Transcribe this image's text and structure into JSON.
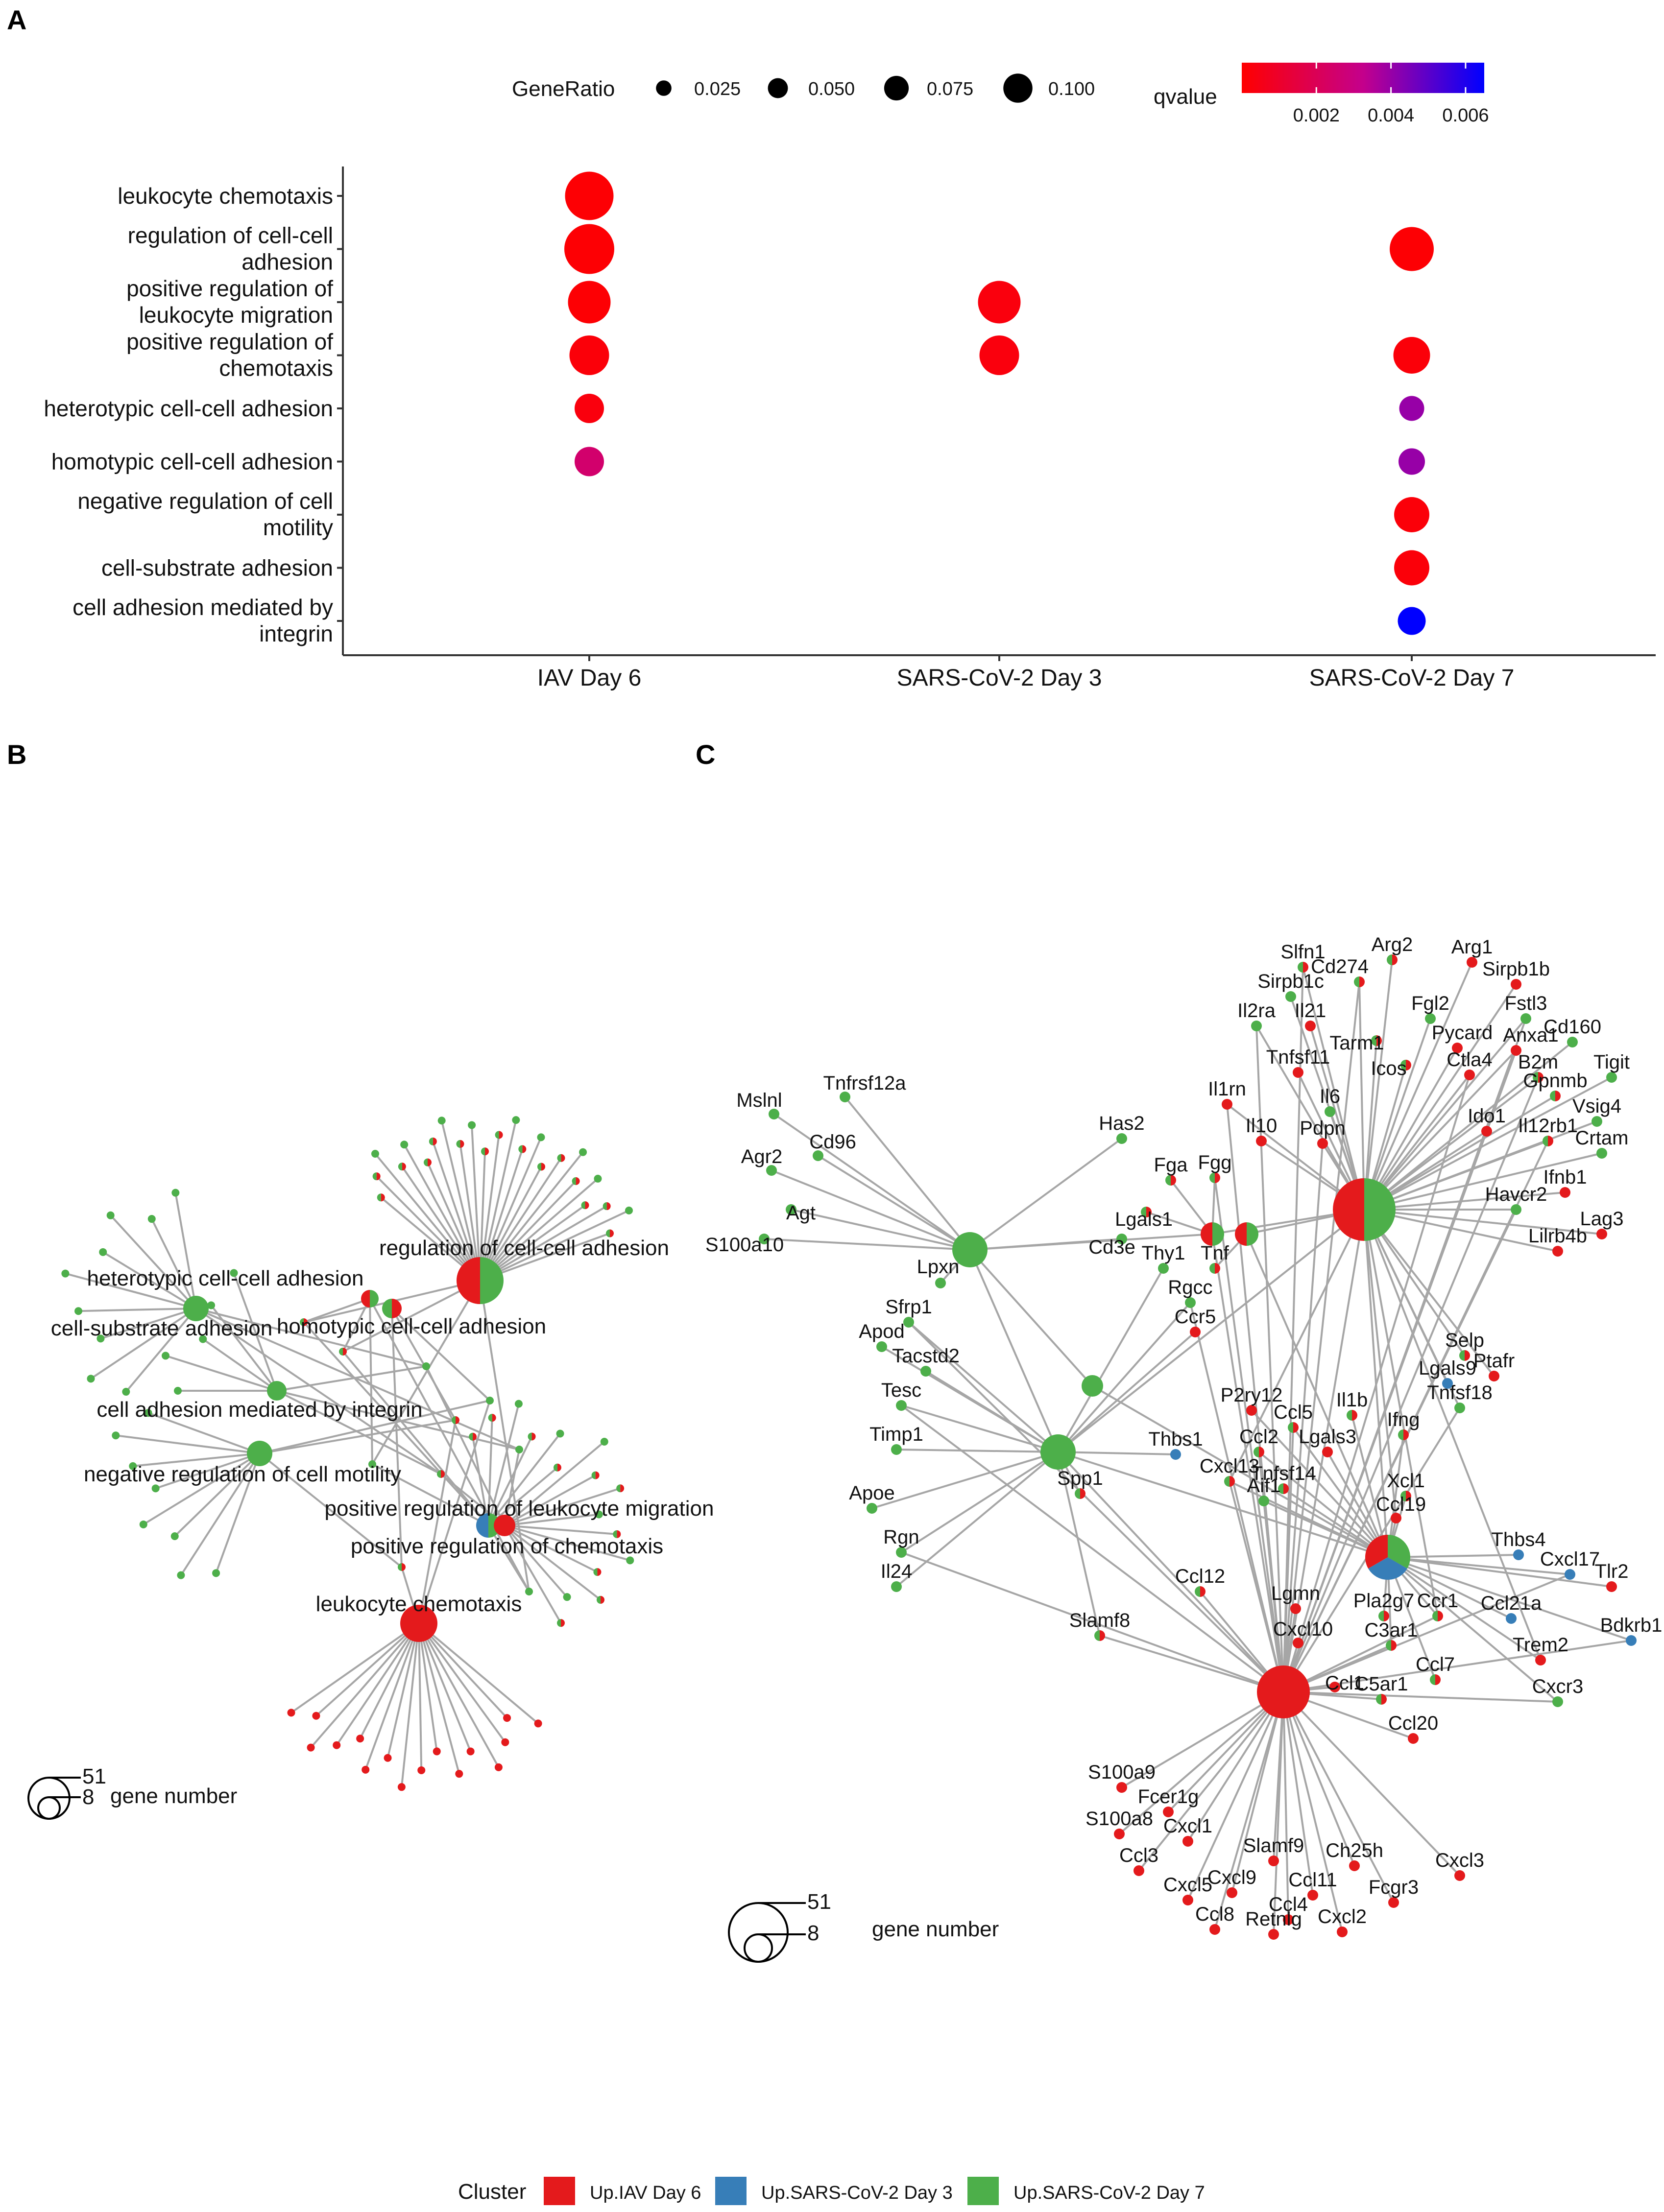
{
  "panels": {
    "a": "A",
    "b": "B",
    "c": "C"
  },
  "colors": {
    "iav": "#E41A1C",
    "sars3": "#377EB8",
    "sars7": "#4DAF4A",
    "edge": "#a6a6a6"
  },
  "chart_data": [
    {
      "type": "scatter",
      "subtype": "dotplot",
      "title": "",
      "categories_x": [
        "IAV Day 6",
        "SARS-CoV-2 Day 3",
        "SARS-CoV-2 Day 7"
      ],
      "categories_y": [
        "leukocyte chemotaxis",
        "regulation of cell-cell adhesion",
        "positive regulation of leukocyte migration",
        "positive regulation of chemotaxis",
        "heterotypic cell-cell adhesion",
        "homotypic cell-cell adhesion",
        "negative regulation of cell motility",
        "cell-substrate adhesion",
        "cell adhesion mediated by integrin"
      ],
      "categories_y_display": [
        [
          "leukocyte chemotaxis"
        ],
        [
          "regulation of cell-cell",
          "adhesion"
        ],
        [
          "positive regulation of",
          "leukocyte migration"
        ],
        [
          "positive regulation of",
          "chemotaxis"
        ],
        [
          "heterotypic cell-cell adhesion"
        ],
        [
          "homotypic cell-cell adhesion"
        ],
        [
          "negative regulation of cell",
          "motility"
        ],
        [
          "cell-substrate adhesion"
        ],
        [
          "cell adhesion mediated by",
          "integrin"
        ]
      ],
      "points": [
        {
          "x": "IAV Day 6",
          "y": "leukocyte chemotaxis",
          "gene_ratio": 0.105,
          "qvalue": 0.0001
        },
        {
          "x": "IAV Day 6",
          "y": "regulation of cell-cell adhesion",
          "gene_ratio": 0.11,
          "qvalue": 0.0001
        },
        {
          "x": "IAV Day 6",
          "y": "positive regulation of leukocyte migration",
          "gene_ratio": 0.085,
          "qvalue": 0.0001
        },
        {
          "x": "IAV Day 6",
          "y": "positive regulation of chemotaxis",
          "gene_ratio": 0.075,
          "qvalue": 0.0002
        },
        {
          "x": "IAV Day 6",
          "y": "heterotypic cell-cell adhesion",
          "gene_ratio": 0.04,
          "qvalue": 0.0003
        },
        {
          "x": "IAV Day 6",
          "y": "homotypic cell-cell adhesion",
          "gene_ratio": 0.04,
          "qvalue": 0.0025
        },
        {
          "x": "SARS-CoV-2 Day 3",
          "y": "positive regulation of leukocyte migration",
          "gene_ratio": 0.085,
          "qvalue": 0.0003
        },
        {
          "x": "SARS-CoV-2 Day 3",
          "y": "positive regulation of chemotaxis",
          "gene_ratio": 0.075,
          "qvalue": 0.0003
        },
        {
          "x": "SARS-CoV-2 Day 7",
          "y": "regulation of cell-cell adhesion",
          "gene_ratio": 0.09,
          "qvalue": 0.0001
        },
        {
          "x": "SARS-CoV-2 Day 7",
          "y": "positive regulation of chemotaxis",
          "gene_ratio": 0.065,
          "qvalue": 0.0002
        },
        {
          "x": "SARS-CoV-2 Day 7",
          "y": "heterotypic cell-cell adhesion",
          "gene_ratio": 0.025,
          "qvalue": 0.004
        },
        {
          "x": "SARS-CoV-2 Day 7",
          "y": "homotypic cell-cell adhesion",
          "gene_ratio": 0.03,
          "qvalue": 0.004
        },
        {
          "x": "SARS-CoV-2 Day 7",
          "y": "negative regulation of cell motility",
          "gene_ratio": 0.06,
          "qvalue": 0.0002
        },
        {
          "x": "SARS-CoV-2 Day 7",
          "y": "cell-substrate adhesion",
          "gene_ratio": 0.06,
          "qvalue": 0.0002
        },
        {
          "x": "SARS-CoV-2 Day 7",
          "y": "cell adhesion mediated by integrin",
          "gene_ratio": 0.035,
          "qvalue": 0.0065
        }
      ],
      "size_legend": {
        "title": "GeneRatio",
        "values": [
          0.025,
          0.05,
          0.075,
          0.1
        ],
        "labels": [
          "0.025",
          "0.050",
          "0.075",
          "0.100"
        ]
      },
      "color_legend": {
        "title": "qvalue",
        "range": [
          0,
          0.0065
        ],
        "ticks": [
          0.002,
          0.004,
          0.006
        ],
        "labels": [
          "0.002",
          "0.004",
          "0.006"
        ],
        "low_color": "#FF0000",
        "high_color": "#0000FF"
      }
    },
    {
      "type": "network",
      "panel": "B",
      "description_nodes": [
        {
          "label": "regulation of cell-cell adhesion",
          "genes": 45,
          "clusters": [
            "Up.SARS-CoV-2 Day 7",
            "Up.IAV Day 6"
          ]
        },
        {
          "label": "heterotypic cell-cell adhesion",
          "genes": 12,
          "clusters": [
            "Up.SARS-CoV-2 Day 7"
          ]
        },
        {
          "label": "homotypic cell-cell adhesion",
          "genes": 10,
          "clusters": [
            "Up.IAV Day 6",
            "Up.SARS-CoV-2 Day 7"
          ]
        },
        {
          "label": "cell-substrate adhesion",
          "genes": 15,
          "clusters": [
            "Up.SARS-CoV-2 Day 7"
          ]
        },
        {
          "label": "cell adhesion mediated by integrin",
          "genes": 9,
          "clusters": [
            "Up.SARS-CoV-2 Day 7"
          ]
        },
        {
          "label": "negative regulation of cell motility",
          "genes": 15,
          "clusters": [
            "Up.SARS-CoV-2 Day 7"
          ]
        },
        {
          "label": "positive regulation of leukocyte migration",
          "genes": 20,
          "clusters": [
            "Up.SARS-CoV-2 Day 7",
            "Up.SARS-CoV-2 Day 3"
          ]
        },
        {
          "label": "positive regulation of chemotaxis",
          "genes": 16,
          "clusters": [
            "Up.IAV Day 6"
          ]
        },
        {
          "label": "leukocyte chemotaxis",
          "genes": 40,
          "clusters": [
            "Up.IAV Day 6"
          ]
        }
      ],
      "size_legend": {
        "title": "gene number",
        "values": [
          8,
          51
        ],
        "labels": [
          "8",
          "51"
        ]
      }
    },
    {
      "type": "network",
      "panel": "C",
      "hubs": [
        {
          "name": "hub-top-right",
          "genes": 51,
          "clusters": [
            "Up.SARS-CoV-2 Day 7",
            "Up.IAV Day 6"
          ]
        },
        {
          "name": "hub-leukocyte-chemotaxis",
          "genes": 45,
          "clusters": [
            "Up.IAV Day 6"
          ]
        },
        {
          "name": "hub-migration",
          "genes": 35,
          "clusters": [
            "Up.SARS-CoV-2 Day 7",
            "Up.SARS-CoV-2 Day 3",
            "Up.IAV Day 6"
          ]
        },
        {
          "name": "hub-left-top",
          "genes": 22,
          "clusters": [
            "Up.SARS-CoV-2 Day 7"
          ]
        },
        {
          "name": "hub-left-bottom",
          "genes": 22,
          "clusters": [
            "Up.SARS-CoV-2 Day 7"
          ]
        },
        {
          "name": "hub-small-1",
          "genes": 12,
          "clusters": [
            "Up.SARS-CoV-2 Day 7",
            "Up.IAV Day 6"
          ]
        },
        {
          "name": "hub-small-2",
          "genes": 12,
          "clusters": [
            "Up.SARS-CoV-2 Day 7",
            "Up.IAV Day 6"
          ]
        },
        {
          "name": "hub-small-3",
          "genes": 9,
          "clusters": [
            "Up.SARS-CoV-2 Day 7"
          ]
        }
      ],
      "gene_labels": [
        "Slfn1",
        "Arg2",
        "Arg1",
        "Cd274",
        "Sirpb1c",
        "Sirpb1b",
        "Il2ra",
        "Il21",
        "Fgl2",
        "Fstl3",
        "Tarm1",
        "Pycard",
        "Anxa1",
        "Cd160",
        "Icos",
        "B2m",
        "Tigit",
        "Tnfsf11",
        "Ctla4",
        "Gpnmb",
        "Vsig4",
        "Il1rn",
        "Il6",
        "Ido1",
        "Il12rb1",
        "Crtam",
        "Il10",
        "Pdpn",
        "Ifnb1",
        "Has2",
        "Havcr2",
        "Lag3",
        "Fga",
        "Fgg",
        "Lilrb4b",
        "Lgals1",
        "Cd3e",
        "Thy1",
        "Tnf",
        "Rgcc",
        "Ccr5",
        "Tnfrsf12a",
        "Mslnl",
        "Cd96",
        "Agr2",
        "Agt",
        "S100a10",
        "Lpxn",
        "Sfrp1",
        "Apod",
        "Tacstd2",
        "Tesc",
        "Timp1",
        "Apoe",
        "Rgn",
        "Il24",
        "Spp1",
        "Slamf8",
        "Selp",
        "Lgals9",
        "Tnfsf18",
        "Ptafr",
        "P2ry12",
        "Ccl5",
        "Il1b",
        "Thbs1",
        "Ccl2",
        "Lgals3",
        "Ifng",
        "Cxcl13",
        "Tnfsf14",
        "Xcl1",
        "Aif1",
        "Ccl19",
        "Thbs4",
        "Cxcl17",
        "Tlr2",
        "Ccl12",
        "Bdkrb1",
        "Lgmn",
        "Pla2g7",
        "Ccr1",
        "Ccl21a",
        "Cxcl10",
        "C3ar1",
        "Trem2",
        "Ccl1",
        "Cxcr3",
        "Ccl7",
        "C5ar1",
        "Ccl20",
        "S100a9",
        "Fcer1g",
        "S100a8",
        "Cxcl1",
        "Ccl3",
        "Slamf9",
        "Ch25h",
        "Cxcl3",
        "Cxcl9",
        "Cxcl5",
        "Ccl11",
        "Fcgr3",
        "Ccl4",
        "Ccl8",
        "Retnlg",
        "Cxcl2"
      ],
      "size_legend": {
        "title": "gene number",
        "values": [
          8,
          51
        ],
        "labels": [
          "8",
          "51"
        ]
      }
    }
  ],
  "cluster_legend": {
    "title": "Cluster",
    "items": [
      {
        "label": "Up.IAV Day 6",
        "color": "#E41A1C"
      },
      {
        "label": "Up.SARS-CoV-2 Day 3",
        "color": "#377EB8"
      },
      {
        "label": "Up.SARS-CoV-2 Day 7",
        "color": "#4DAF4A"
      }
    ]
  }
}
